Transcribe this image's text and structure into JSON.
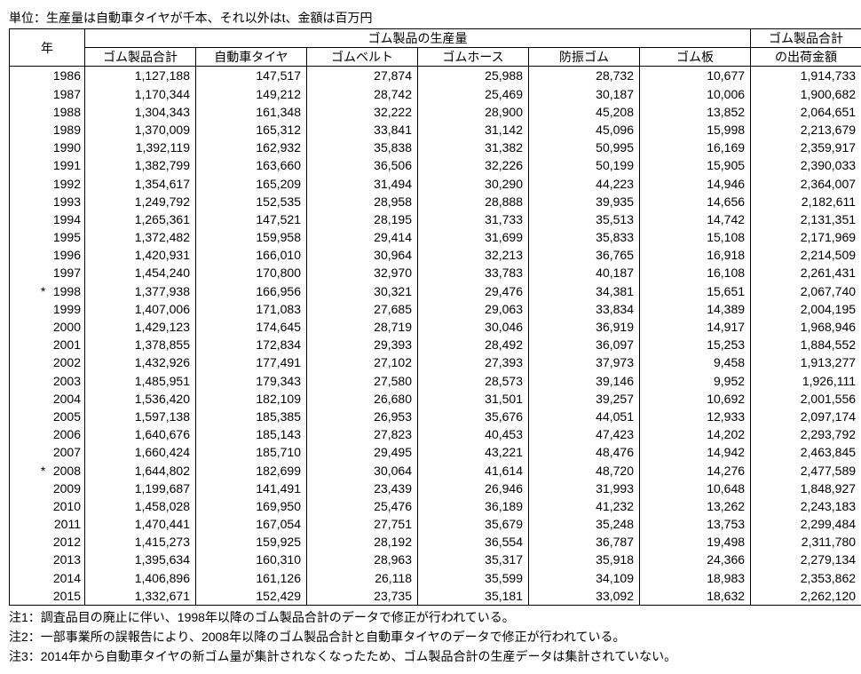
{
  "unit_note": "単位：生産量は自動車タイヤが千本、それ以外はt、金額は百万円",
  "header": {
    "year": "年",
    "production_group": "ゴム製品の生産量",
    "shipment_header1": "ゴム製品合計",
    "shipment_header2": "の出荷金額",
    "cols": [
      "ゴム製品合計",
      "自動車タイヤ",
      "ゴムベルト",
      "ゴムホース",
      "防振ゴム",
      "ゴム板"
    ]
  },
  "rows": [
    {
      "star": "",
      "year": "1986",
      "v": [
        "1,127,188",
        "147,517",
        "27,874",
        "25,988",
        "28,732",
        "10,677",
        "1,914,733"
      ]
    },
    {
      "star": "",
      "year": "1987",
      "v": [
        "1,170,344",
        "149,212",
        "28,742",
        "25,469",
        "30,187",
        "10,006",
        "1,900,682"
      ]
    },
    {
      "star": "",
      "year": "1988",
      "v": [
        "1,304,343",
        "161,348",
        "32,222",
        "28,900",
        "45,208",
        "13,852",
        "2,064,651"
      ]
    },
    {
      "star": "",
      "year": "1989",
      "v": [
        "1,370,009",
        "165,312",
        "33,841",
        "31,142",
        "45,096",
        "15,998",
        "2,213,679"
      ]
    },
    {
      "star": "",
      "year": "1990",
      "v": [
        "1,392,119",
        "162,932",
        "35,838",
        "31,382",
        "50,995",
        "16,169",
        "2,359,917"
      ]
    },
    {
      "star": "",
      "year": "1991",
      "v": [
        "1,382,799",
        "163,660",
        "36,506",
        "32,226",
        "50,199",
        "15,905",
        "2,390,033"
      ]
    },
    {
      "star": "",
      "year": "1992",
      "v": [
        "1,354,617",
        "165,209",
        "31,494",
        "30,290",
        "44,223",
        "14,946",
        "2,364,007"
      ]
    },
    {
      "star": "",
      "year": "1993",
      "v": [
        "1,249,792",
        "152,535",
        "28,958",
        "28,888",
        "39,935",
        "14,656",
        "2,182,611"
      ]
    },
    {
      "star": "",
      "year": "1994",
      "v": [
        "1,265,361",
        "147,521",
        "28,195",
        "31,733",
        "35,513",
        "14,742",
        "2,131,351"
      ]
    },
    {
      "star": "",
      "year": "1995",
      "v": [
        "1,372,482",
        "159,958",
        "29,414",
        "31,699",
        "35,833",
        "15,108",
        "2,171,969"
      ]
    },
    {
      "star": "",
      "year": "1996",
      "v": [
        "1,420,931",
        "166,010",
        "30,964",
        "32,213",
        "36,765",
        "16,918",
        "2,214,509"
      ]
    },
    {
      "star": "",
      "year": "1997",
      "v": [
        "1,454,240",
        "170,800",
        "32,970",
        "33,783",
        "40,187",
        "16,108",
        "2,261,431"
      ]
    },
    {
      "star": "*",
      "year": "1998",
      "v": [
        "1,377,938",
        "166,956",
        "30,321",
        "29,476",
        "34,381",
        "15,651",
        "2,067,740"
      ]
    },
    {
      "star": "",
      "year": "1999",
      "v": [
        "1,407,006",
        "171,083",
        "27,685",
        "29,063",
        "33,834",
        "14,389",
        "2,004,195"
      ]
    },
    {
      "star": "",
      "year": "2000",
      "v": [
        "1,429,123",
        "174,645",
        "28,719",
        "30,046",
        "36,919",
        "14,917",
        "1,968,946"
      ]
    },
    {
      "star": "",
      "year": "2001",
      "v": [
        "1,378,855",
        "172,834",
        "29,393",
        "28,492",
        "36,097",
        "15,253",
        "1,884,552"
      ]
    },
    {
      "star": "",
      "year": "2002",
      "v": [
        "1,432,926",
        "177,491",
        "27,102",
        "27,393",
        "37,973",
        "9,458",
        "1,913,277"
      ]
    },
    {
      "star": "",
      "year": "2003",
      "v": [
        "1,485,951",
        "179,343",
        "27,580",
        "28,573",
        "39,146",
        "9,952",
        "1,926,111"
      ]
    },
    {
      "star": "",
      "year": "2004",
      "v": [
        "1,536,420",
        "182,109",
        "26,680",
        "31,501",
        "39,257",
        "10,692",
        "2,001,556"
      ]
    },
    {
      "star": "",
      "year": "2005",
      "v": [
        "1,597,138",
        "185,385",
        "26,953",
        "35,676",
        "44,051",
        "12,933",
        "2,097,174"
      ]
    },
    {
      "star": "",
      "year": "2006",
      "v": [
        "1,640,676",
        "185,143",
        "27,823",
        "40,453",
        "47,423",
        "14,202",
        "2,293,792"
      ]
    },
    {
      "star": "",
      "year": "2007",
      "v": [
        "1,660,424",
        "185,710",
        "29,495",
        "43,221",
        "48,476",
        "14,942",
        "2,463,845"
      ]
    },
    {
      "star": "*",
      "year": "2008",
      "v": [
        "1,644,802",
        "182,699",
        "30,064",
        "41,614",
        "48,720",
        "14,276",
        "2,477,589"
      ]
    },
    {
      "star": "",
      "year": "2009",
      "v": [
        "1,199,687",
        "141,491",
        "23,439",
        "26,946",
        "31,993",
        "10,648",
        "1,848,927"
      ]
    },
    {
      "star": "",
      "year": "2010",
      "v": [
        "1,458,028",
        "169,950",
        "25,476",
        "36,189",
        "41,232",
        "13,262",
        "2,243,183"
      ]
    },
    {
      "star": "",
      "year": "2011",
      "v": [
        "1,470,441",
        "167,054",
        "27,751",
        "35,679",
        "35,248",
        "13,753",
        "2,299,484"
      ]
    },
    {
      "star": "",
      "year": "2012",
      "v": [
        "1,415,273",
        "159,925",
        "28,192",
        "36,554",
        "36,787",
        "19,498",
        "2,311,780"
      ]
    },
    {
      "star": "",
      "year": "2013",
      "v": [
        "1,395,634",
        "160,310",
        "28,963",
        "35,317",
        "35,918",
        "24,366",
        "2,279,134"
      ]
    },
    {
      "star": "",
      "year": "2014",
      "v": [
        "1,406,896",
        "161,126",
        "26,118",
        "35,599",
        "34,109",
        "18,983",
        "2,353,862"
      ]
    },
    {
      "star": "",
      "year": "2015",
      "v": [
        "1,332,671",
        "152,429",
        "23,735",
        "35,181",
        "33,092",
        "18,632",
        "2,262,120"
      ]
    }
  ],
  "footnotes": [
    "注1：調査品目の廃止に伴い、1998年以降のゴム製品合計のデータで修正が行われている。",
    "注2：一部事業所の誤報告により、2008年以降のゴム製品合計と自動車タイヤのデータで修正が行われている。",
    "注3：2014年から自動車タイヤの新ゴム量が集計されなくなったため、ゴム製品合計の生産データは集計されていない。"
  ]
}
